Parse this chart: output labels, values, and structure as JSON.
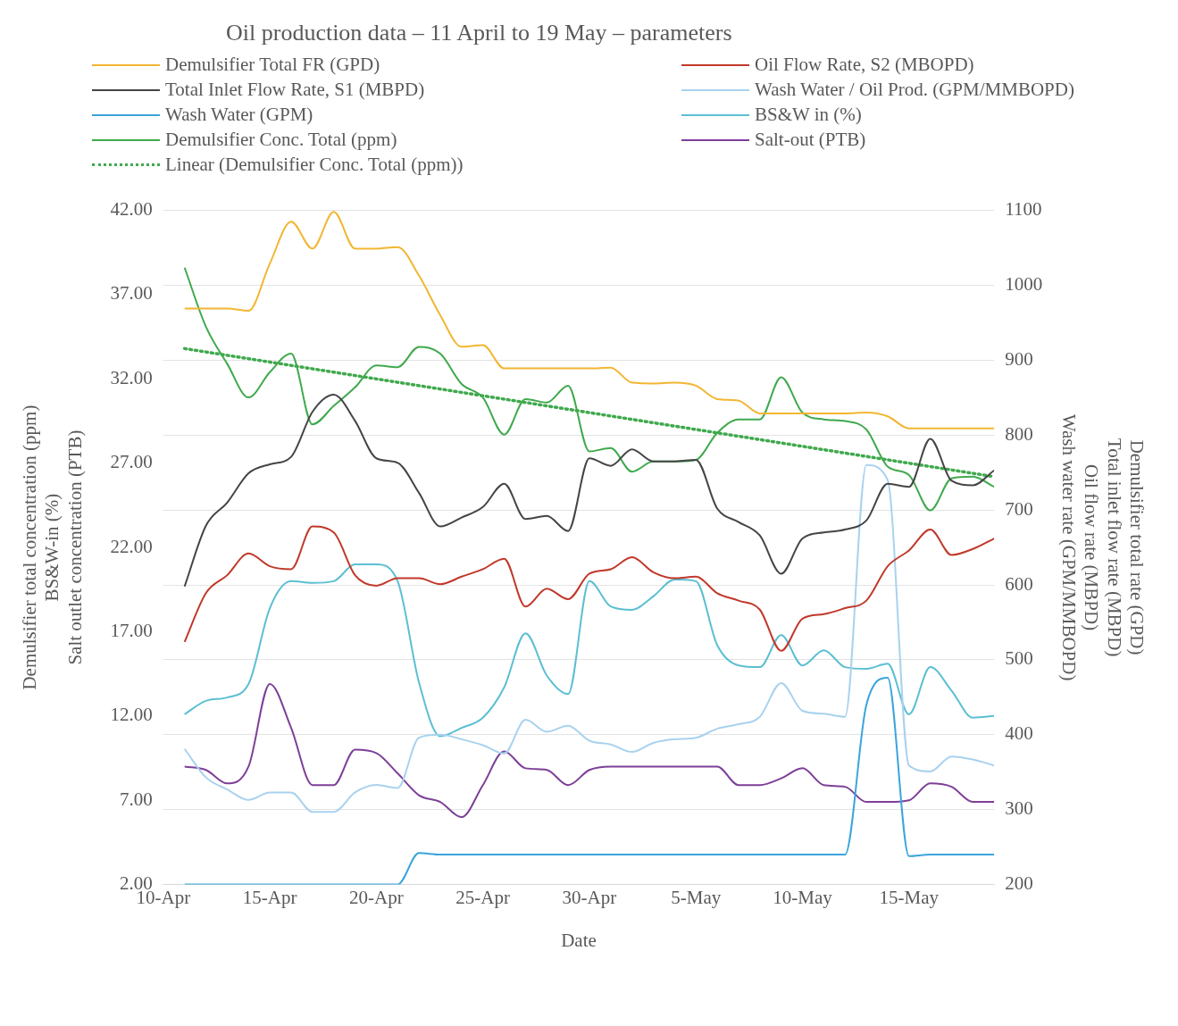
{
  "chart_data": {
    "type": "line",
    "title": "Oil production data – 11 April to 19 May – parameters",
    "xlabel": "Date",
    "ylabel": "Demulsifier total concentration (ppm)\nBS&W-in (%)\nSalt outlet concentration (PTB)",
    "y2label": "Demulsifier total rate (GPD)\nTotal inlet flow rate (MBPD)\nOil flow rate (MBPD)\nWash water rate (GPM/MMBOPD)",
    "x": [
      "--04-11",
      "--04-12",
      "--04-13",
      "--04-14",
      "--04-15",
      "--04-16",
      "--04-17",
      "--04-18",
      "--04-19",
      "--04-20",
      "--04-21",
      "--04-22",
      "--04-23",
      "--04-24",
      "--04-25",
      "--04-26",
      "--04-27",
      "--04-28",
      "--04-29",
      "--04-30",
      "--05-01",
      "--05-02",
      "--05-03",
      "--05-04",
      "--05-05",
      "--05-06",
      "--05-07",
      "--05-08",
      "--05-09",
      "--05-10",
      "--05-11",
      "--05-12",
      "--05-13",
      "--05-14",
      "--05-15",
      "--05-16",
      "--05-17",
      "--05-18",
      "--05-19"
    ],
    "xlim": [
      "--04-10",
      "--05-19"
    ],
    "xticks": [
      {
        "value": "--04-10",
        "label": "10-Apr"
      },
      {
        "value": "--04-15",
        "label": "15-Apr"
      },
      {
        "value": "--04-20",
        "label": "20-Apr"
      },
      {
        "value": "--04-25",
        "label": "25-Apr"
      },
      {
        "value": "--04-30",
        "label": "30-Apr"
      },
      {
        "value": "--05-05",
        "label": "5-May"
      },
      {
        "value": "--05-10",
        "label": "10-May"
      },
      {
        "value": "--05-15",
        "label": "15-May"
      }
    ],
    "ylim": [
      2,
      42
    ],
    "yticks": [
      {
        "value": 2,
        "label": "2.00"
      },
      {
        "value": 7,
        "label": "7.00"
      },
      {
        "value": 12,
        "label": "12.00"
      },
      {
        "value": 17,
        "label": "17.00"
      },
      {
        "value": 22,
        "label": "22.00"
      },
      {
        "value": 27,
        "label": "27.00"
      },
      {
        "value": 32,
        "label": "32.00"
      },
      {
        "value": 37,
        "label": "37.00"
      },
      {
        "value": 42,
        "label": "42.00"
      }
    ],
    "y2lim": [
      200,
      1100
    ],
    "y2ticks": [
      200,
      300,
      400,
      500,
      600,
      700,
      800,
      900,
      1000,
      1100
    ],
    "grid": "y2",
    "legend": "top",
    "marker": "none",
    "line_style": "solid",
    "series": [
      {
        "name": "Demulsifier Total FR (GPD)",
        "color": "#f2b632",
        "axis": "y2",
        "values": [
          969,
          969,
          969,
          966,
          1029,
          1085,
          1049,
          1098,
          1049,
          1049,
          1051,
          1013,
          960,
          918,
          920,
          889,
          889,
          889,
          889,
          889,
          890,
          870,
          869,
          870,
          866,
          848,
          846,
          829,
          829,
          829,
          829,
          829,
          830,
          825,
          809,
          809,
          809,
          809,
          809
        ]
      },
      {
        "name": "Oil Flow Rate, S2 (MBOPD)",
        "color": "#c0392b",
        "axis": "y2",
        "values": [
          524,
          589,
          613,
          642,
          625,
          621,
          678,
          670,
          613,
          599,
          609,
          609,
          601,
          611,
          621,
          635,
          571,
          595,
          581,
          615,
          621,
          637,
          617,
          609,
          611,
          589,
          579,
          567,
          512,
          555,
          561,
          569,
          579,
          625,
          646,
          674,
          640,
          648,
          662
        ]
      },
      {
        "name": "Total Inlet Flow Rate, S1 (MBPD)",
        "color": "#454545",
        "axis": "y2",
        "values": [
          598,
          679,
          710,
          749,
          761,
          771,
          831,
          854,
          819,
          769,
          763,
          723,
          678,
          690,
          704,
          735,
          688,
          692,
          672,
          769,
          759,
          781,
          765,
          765,
          767,
          702,
          684,
          666,
          615,
          662,
          670,
          674,
          686,
          735,
          731,
          795,
          739,
          733,
          753
        ]
      },
      {
        "name": "Wash Water / Oil Prod. (GPM/MMBOPD)",
        "color": "#a9d2ee",
        "axis": "y2",
        "values": [
          381,
          343,
          327,
          313,
          323,
          323,
          297,
          297,
          323,
          333,
          329,
          396,
          400,
          394,
          386,
          375,
          420,
          404,
          412,
          392,
          387,
          377,
          389,
          394,
          396,
          408,
          414,
          424,
          469,
          432,
          428,
          424,
          760,
          740,
          359,
          351,
          371,
          367,
          359
        ]
      },
      {
        "name": "Wash Water (GPM)",
        "color": "#3ba4dc",
        "axis": "y2",
        "values": [
          200,
          200,
          200,
          200,
          200,
          200,
          200,
          200,
          200,
          200,
          200,
          242,
          240,
          240,
          240,
          240,
          240,
          240,
          240,
          240,
          240,
          240,
          240,
          240,
          240,
          240,
          240,
          240,
          240,
          240,
          240,
          240,
          440,
          476,
          238,
          240,
          240,
          240,
          240
        ]
      },
      {
        "name": "BS&W in (%)",
        "color": "#5bbfd3",
        "values": [
          12.1,
          12.9,
          13.1,
          13.9,
          18.4,
          20.0,
          19.9,
          20.0,
          21.0,
          21.0,
          20.0,
          14.0,
          10.8,
          11.3,
          11.9,
          13.7,
          16.9,
          14.4,
          13.3,
          20.0,
          18.5,
          18.3,
          19.1,
          20.1,
          20.0,
          16.2,
          15.0,
          14.9,
          16.8,
          15.0,
          15.9,
          14.9,
          14.8,
          15.1,
          12.1,
          14.9,
          13.5,
          11.9,
          12.0
        ]
      },
      {
        "name": "Demulsifier Conc. Total (ppm)",
        "color": "#3fa94d",
        "values": [
          38.6,
          35.1,
          32.9,
          30.9,
          32.4,
          33.5,
          29.3,
          30.4,
          31.5,
          32.8,
          32.7,
          33.9,
          33.5,
          31.7,
          30.9,
          28.7,
          30.8,
          30.6,
          31.6,
          27.7,
          27.9,
          26.5,
          27.1,
          27.1,
          27.2,
          28.8,
          29.6,
          29.6,
          32.1,
          30.0,
          29.6,
          29.5,
          29.0,
          26.8,
          26.3,
          24.2,
          26.1,
          26.2,
          25.6
        ]
      },
      {
        "name": "Salt-out (PTB)",
        "color": "#7d3f98",
        "values": [
          9.0,
          8.8,
          8.0,
          9.0,
          13.9,
          11.3,
          7.9,
          7.9,
          10.0,
          9.8,
          8.6,
          7.3,
          6.9,
          6.0,
          7.9,
          9.9,
          8.9,
          8.8,
          7.9,
          8.8,
          9.0,
          9.0,
          9.0,
          9.0,
          9.0,
          9.0,
          7.9,
          7.9,
          8.3,
          8.9,
          7.9,
          7.8,
          6.9,
          6.9,
          7.0,
          8.0,
          7.8,
          6.9,
          6.9
        ]
      },
      {
        "name": "Linear (Demulsifier Conc. Total (ppm))",
        "color": "#3fa94d",
        "line_style": "dotted",
        "x": [
          "--04-11",
          "--05-19"
        ],
        "values": [
          33.8,
          26.2
        ]
      }
    ]
  }
}
